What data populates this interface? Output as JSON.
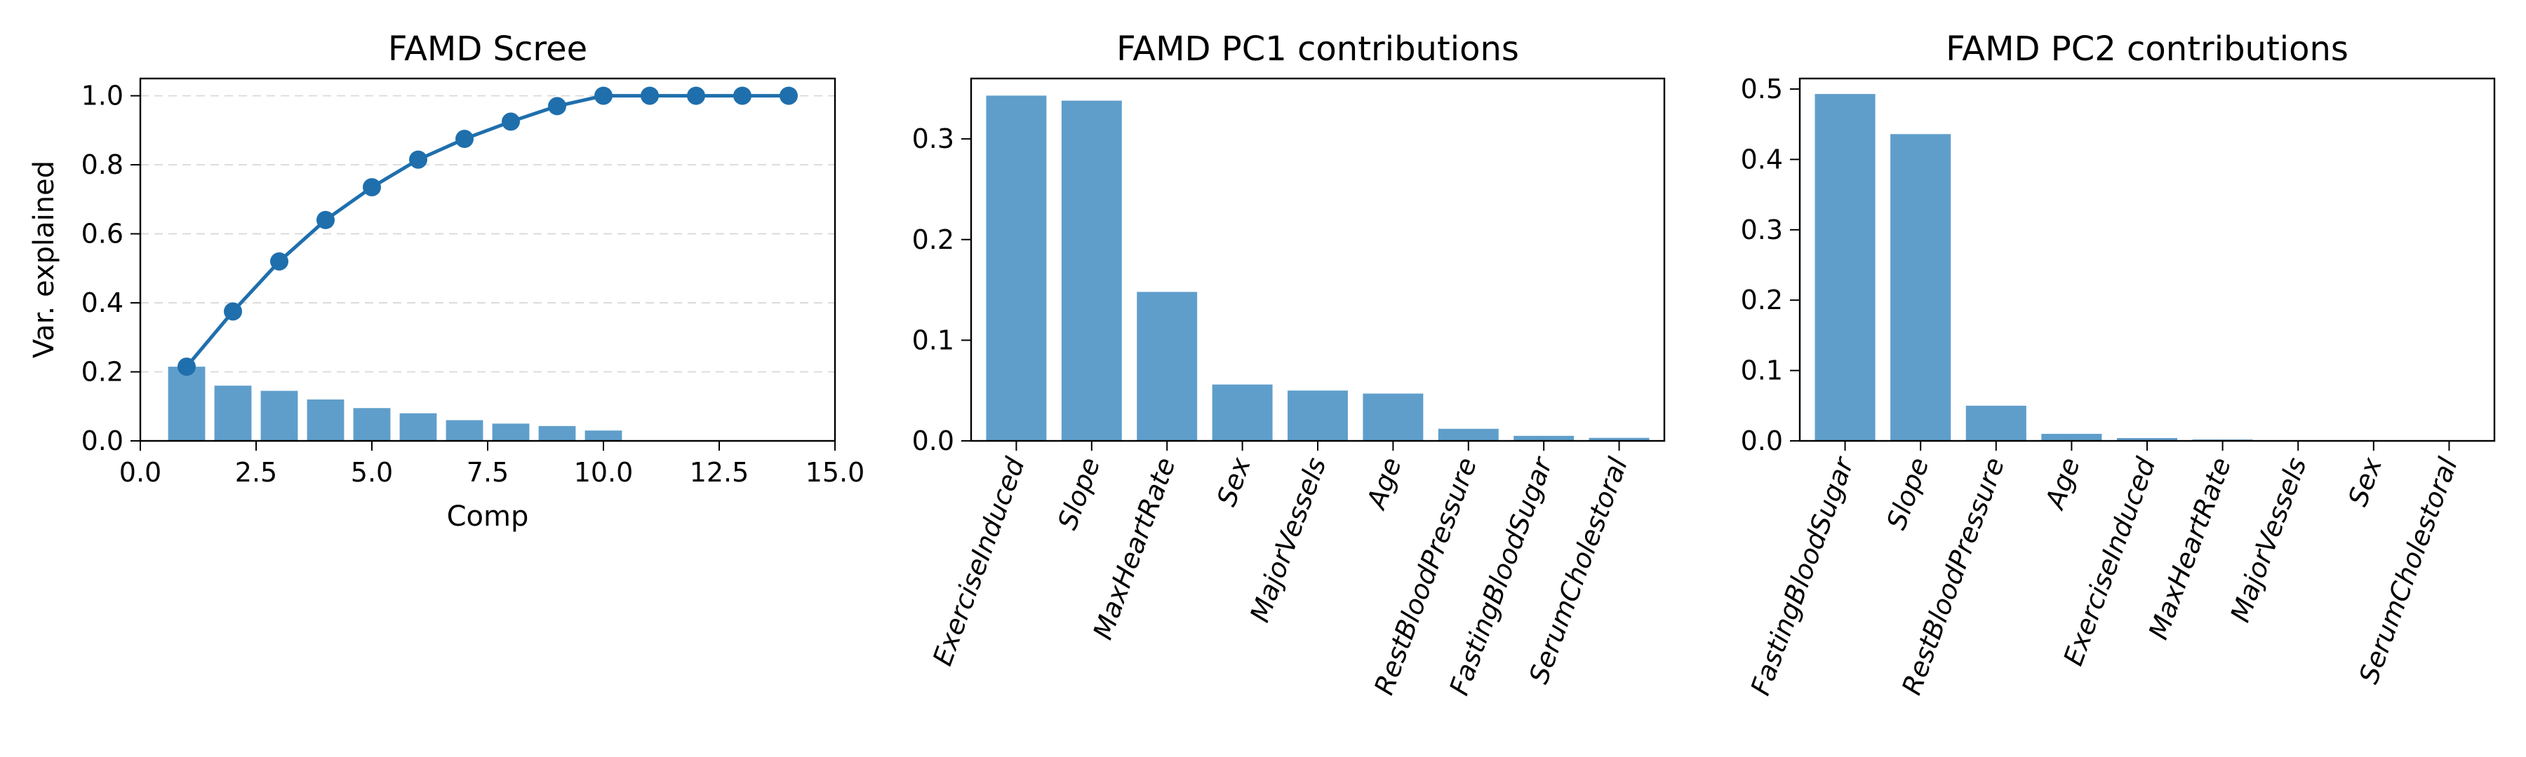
{
  "colors": {
    "bar": "#5f9ecb",
    "line": "#1f6fad",
    "frame": "#000000",
    "grid": "#d9d9d9"
  },
  "chart_data": [
    {
      "type": "bar+line",
      "title": "FAMD Scree",
      "xlabel": "Comp",
      "ylabel": "Var. explained",
      "xlim": [
        0,
        15
      ],
      "ylim": [
        0,
        1.05
      ],
      "xticks": [
        0,
        2.5,
        5,
        7.5,
        10,
        12.5,
        15
      ],
      "xtick_labels": [
        "0.0",
        "2.5",
        "5.0",
        "7.5",
        "10.0",
        "12.5",
        "15.0"
      ],
      "yticks": [
        0,
        0.2,
        0.4,
        0.6,
        0.8,
        1.0
      ],
      "ytick_labels": [
        "0.0",
        "0.2",
        "0.4",
        "0.6",
        "0.8",
        "1.0"
      ],
      "grid": "y-dashed",
      "bars": {
        "x": [
          1,
          2,
          3,
          4,
          5,
          6,
          7,
          8,
          9,
          10,
          11,
          12,
          13,
          14
        ],
        "values": [
          0.215,
          0.16,
          0.145,
          0.12,
          0.095,
          0.08,
          0.06,
          0.05,
          0.043,
          0.03,
          0.0,
          0.0,
          0.0,
          0.0
        ]
      },
      "line": {
        "x": [
          1,
          2,
          3,
          4,
          5,
          6,
          7,
          8,
          9,
          10,
          11,
          12,
          13,
          14
        ],
        "values": [
          0.215,
          0.375,
          0.52,
          0.64,
          0.735,
          0.815,
          0.875,
          0.925,
          0.97,
          1.0,
          1.0,
          1.0,
          1.0,
          1.0
        ]
      }
    },
    {
      "type": "bar",
      "title": "FAMD PC1 contributions",
      "categories": [
        "ExerciseInduced",
        "Slope",
        "MaxHeartRate",
        "Sex",
        "MajorVessels",
        "Age",
        "RestBloodPressure",
        "FastingBloodSugar",
        "SerumCholestoral"
      ],
      "values": [
        0.343,
        0.338,
        0.148,
        0.056,
        0.05,
        0.047,
        0.012,
        0.005,
        0.003
      ],
      "ylim": [
        0,
        0.36
      ],
      "yticks": [
        0,
        0.1,
        0.2,
        0.3
      ],
      "ytick_labels": [
        "0.0",
        "0.1",
        "0.2",
        "0.3"
      ],
      "xlabel": "",
      "ylabel": ""
    },
    {
      "type": "bar",
      "title": "FAMD PC2 contributions",
      "categories": [
        "FastingBloodSugar",
        "Slope",
        "RestBloodPressure",
        "Age",
        "ExerciseInduced",
        "MaxHeartRate",
        "MajorVessels",
        "Sex",
        "SerumCholestoral"
      ],
      "values": [
        0.493,
        0.436,
        0.05,
        0.01,
        0.004,
        0.002,
        0.001,
        0.001,
        0.0
      ],
      "ylim": [
        0,
        0.515
      ],
      "yticks": [
        0,
        0.1,
        0.2,
        0.3,
        0.4,
        0.5
      ],
      "ytick_labels": [
        "0.0",
        "0.1",
        "0.2",
        "0.3",
        "0.4",
        "0.5"
      ],
      "xlabel": "",
      "ylabel": ""
    }
  ]
}
